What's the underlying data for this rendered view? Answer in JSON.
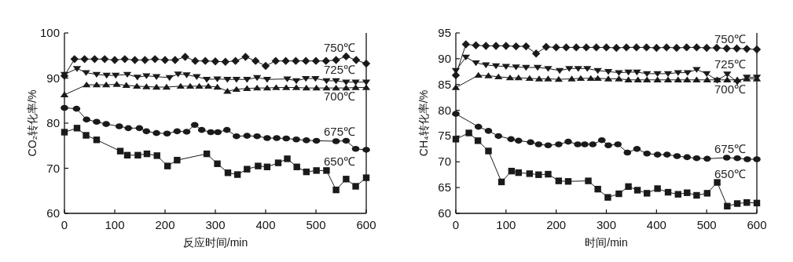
{
  "chart_data": [
    {
      "type": "line",
      "xlabel": "反应时间/min",
      "ylabel": "CO₂转化率/%",
      "xlim": [
        0,
        600
      ],
      "xticks": [
        0,
        100,
        200,
        300,
        400,
        500,
        600
      ],
      "ylim": [
        60,
        100
      ],
      "yticks": [
        60,
        70,
        80,
        90,
        100
      ],
      "grid": false,
      "legend": false,
      "line_style": "solid",
      "series": [
        {
          "name": "750℃",
          "color": "#1a1a1a",
          "marker": "diamond",
          "x": [
            0,
            20,
            40,
            60,
            80,
            100,
            120,
            140,
            160,
            180,
            200,
            220,
            240,
            260,
            280,
            300,
            320,
            340,
            360,
            380,
            400,
            420,
            440,
            460,
            480,
            500,
            520,
            540,
            560,
            580,
            600
          ],
          "values": [
            90.5,
            94.2,
            94.2,
            94.2,
            94.2,
            94.0,
            94.2,
            94.0,
            94.0,
            94.2,
            94.0,
            94.0,
            94.7,
            93.8,
            93.8,
            93.7,
            93.6,
            93.8,
            94.7,
            93.8,
            92.7,
            93.8,
            93.8,
            93.8,
            93.8,
            93.8,
            93.8,
            94.0,
            94.8,
            94.0,
            93.2
          ]
        },
        {
          "name": "725℃",
          "color": "#1a1a1a",
          "marker": "triangle-down",
          "x": [
            0,
            25,
            43,
            64,
            84,
            102,
            125,
            145,
            163,
            183,
            209,
            226,
            243,
            263,
            283,
            304,
            324,
            342,
            363,
            383,
            403,
            443,
            461,
            480,
            499,
            521,
            540,
            560,
            579,
            600
          ],
          "values": [
            90.8,
            92.1,
            91.2,
            90.8,
            90.6,
            90.6,
            90.8,
            90.2,
            90.5,
            90.3,
            90.1,
            90.9,
            90.7,
            90.3,
            89.7,
            89.8,
            89.7,
            89.7,
            89.7,
            90.1,
            89.7,
            89.8,
            89.4,
            89.9,
            89.9,
            89.4,
            89.4,
            89.1,
            89.1,
            89.1
          ]
        },
        {
          "name": "700℃",
          "color": "#1a1a1a",
          "marker": "triangle",
          "x": [
            0,
            44,
            64,
            83,
            104,
            123,
            144,
            163,
            183,
            203,
            231,
            250,
            268,
            286,
            304,
            324,
            342,
            363,
            383,
            403,
            421,
            441,
            461,
            481,
            501,
            521,
            540,
            560,
            579,
            600
          ],
          "values": [
            86.3,
            88.5,
            88.5,
            88.5,
            88.6,
            88.4,
            88.2,
            88.1,
            88.0,
            88.0,
            88.2,
            88.2,
            88.2,
            88.2,
            88.0,
            87.1,
            87.5,
            87.7,
            87.8,
            87.8,
            87.9,
            87.9,
            87.9,
            87.8,
            87.8,
            87.8,
            87.8,
            87.8,
            87.9,
            87.9
          ]
        },
        {
          "name": "675℃",
          "color": "#1a1a1a",
          "marker": "circle",
          "x": [
            0,
            24,
            44,
            64,
            83,
            109,
            127,
            149,
            163,
            183,
            204,
            224,
            243,
            259,
            273,
            291,
            305,
            323,
            342,
            363,
            383,
            403,
            422,
            441,
            461,
            481,
            501,
            540,
            560,
            579,
            600
          ],
          "values": [
            83.4,
            83.2,
            80.8,
            80.3,
            79.8,
            79.3,
            78.9,
            78.9,
            78.2,
            77.8,
            77.7,
            78.2,
            78.1,
            79.6,
            78.5,
            78.0,
            78.0,
            78.5,
            77.1,
            77.2,
            77.1,
            76.7,
            76.7,
            76.6,
            76.4,
            76.2,
            76.1,
            76.0,
            76.1,
            74.3,
            74.1
          ]
        },
        {
          "name": "650℃",
          "color": "#1a1a1a",
          "marker": "square",
          "x": [
            0,
            25,
            43,
            64,
            111,
            125,
            146,
            164,
            184,
            205,
            224,
            283,
            304,
            325,
            344,
            363,
            385,
            403,
            425,
            443,
            462,
            481,
            501,
            521,
            540,
            560,
            579,
            600
          ],
          "values": [
            78.0,
            78.9,
            77.3,
            76.3,
            73.8,
            72.9,
            72.9,
            73.2,
            72.8,
            70.5,
            71.8,
            73.2,
            71.0,
            69.0,
            68.6,
            69.8,
            70.5,
            70.3,
            71.2,
            72.1,
            70.3,
            69.2,
            69.5,
            69.5,
            65.2,
            67.6,
            66.0,
            67.9
          ]
        }
      ]
    },
    {
      "type": "line",
      "xlabel": "时间/min",
      "ylabel": "CH₄转化率/%",
      "xlim": [
        0,
        600
      ],
      "xticks": [
        0,
        100,
        200,
        300,
        400,
        500,
        600
      ],
      "ylim": [
        60,
        95
      ],
      "yticks": [
        60,
        65,
        70,
        75,
        80,
        85,
        90,
        95
      ],
      "grid": false,
      "legend": false,
      "line_style": "solid",
      "series": [
        {
          "name": "750℃",
          "color": "#1a1a1a",
          "marker": "diamond",
          "x": [
            0,
            20,
            40,
            60,
            80,
            100,
            120,
            140,
            160,
            180,
            200,
            220,
            240,
            260,
            280,
            300,
            320,
            340,
            360,
            380,
            400,
            420,
            440,
            460,
            480,
            500,
            520,
            540,
            560,
            580,
            600
          ],
          "values": [
            86.8,
            92.8,
            92.6,
            92.5,
            92.5,
            92.5,
            92.4,
            92.4,
            91.0,
            92.3,
            92.2,
            92.2,
            92.2,
            92.2,
            92.2,
            92.2,
            92.1,
            92.2,
            92.2,
            92.2,
            92.1,
            92.2,
            92.1,
            92.2,
            92.2,
            92.1,
            92.1,
            92.0,
            92.0,
            91.9,
            91.8
          ]
        },
        {
          "name": "725℃",
          "color": "#1a1a1a",
          "marker": "triangle-down",
          "x": [
            0,
            20,
            40,
            60,
            80,
            100,
            120,
            140,
            163,
            184,
            207,
            226,
            244,
            262,
            283,
            304,
            325,
            344,
            361,
            381,
            402,
            423,
            443,
            462,
            480,
            500,
            521,
            541,
            561,
            580,
            600
          ],
          "values": [
            87.7,
            90.3,
            89.2,
            88.8,
            88.6,
            88.5,
            88.4,
            88.3,
            88.3,
            88.1,
            87.7,
            88.1,
            88.1,
            88.1,
            87.7,
            87.5,
            87.3,
            87.4,
            87.4,
            87.1,
            87.1,
            87.1,
            87.3,
            87.3,
            87.9,
            87.1,
            85.8,
            87.0,
            85.5,
            86.4,
            86.4
          ]
        },
        {
          "name": "700℃",
          "color": "#1a1a1a",
          "marker": "triangle",
          "x": [
            0,
            45,
            65,
            85,
            108,
            125,
            147,
            166,
            184,
            205,
            231,
            249,
            269,
            283,
            304,
            325,
            344,
            363,
            381,
            402,
            423,
            443,
            461,
            480,
            501,
            521,
            541,
            561,
            580,
            600
          ],
          "values": [
            84.4,
            86.8,
            86.7,
            86.5,
            86.3,
            86.3,
            86.2,
            86.1,
            86.1,
            86.0,
            86.1,
            86.2,
            86.2,
            86.2,
            86.1,
            86.1,
            85.9,
            85.9,
            85.9,
            85.9,
            85.9,
            85.9,
            85.9,
            85.9,
            85.9,
            85.9,
            85.9,
            85.9,
            86.1,
            86.1
          ]
        },
        {
          "name": "675℃",
          "color": "#1a1a1a",
          "marker": "circle",
          "x": [
            0,
            45,
            65,
            85,
            110,
            125,
            149,
            165,
            184,
            205,
            224,
            243,
            257,
            273,
            291,
            304,
            323,
            342,
            361,
            381,
            402,
            421,
            441,
            461,
            480,
            501,
            540,
            561,
            581,
            600
          ],
          "values": [
            79.3,
            76.8,
            76.0,
            75.0,
            74.4,
            74.1,
            73.8,
            73.4,
            73.2,
            73.4,
            73.9,
            73.4,
            73.4,
            73.4,
            74.2,
            73.2,
            73.4,
            71.8,
            72.5,
            71.6,
            71.4,
            71.4,
            71.1,
            70.9,
            70.7,
            70.6,
            70.8,
            70.7,
            70.5,
            70.5
          ]
        },
        {
          "name": "650℃",
          "color": "#1a1a1a",
          "marker": "square",
          "x": [
            0,
            26,
            44,
            65,
            91,
            111,
            125,
            147,
            165,
            184,
            205,
            224,
            264,
            283,
            303,
            325,
            344,
            362,
            381,
            402,
            423,
            443,
            461,
            480,
            501,
            521,
            541,
            561,
            580,
            600
          ],
          "values": [
            74.4,
            75.6,
            74.1,
            72.1,
            66.1,
            68.2,
            67.9,
            67.7,
            67.5,
            67.6,
            66.3,
            66.2,
            66.3,
            64.7,
            63.1,
            63.8,
            65.2,
            64.5,
            63.9,
            64.8,
            64.1,
            63.7,
            64.0,
            63.5,
            63.9,
            66.0,
            61.4,
            61.9,
            62.1,
            62.0
          ]
        }
      ]
    }
  ]
}
